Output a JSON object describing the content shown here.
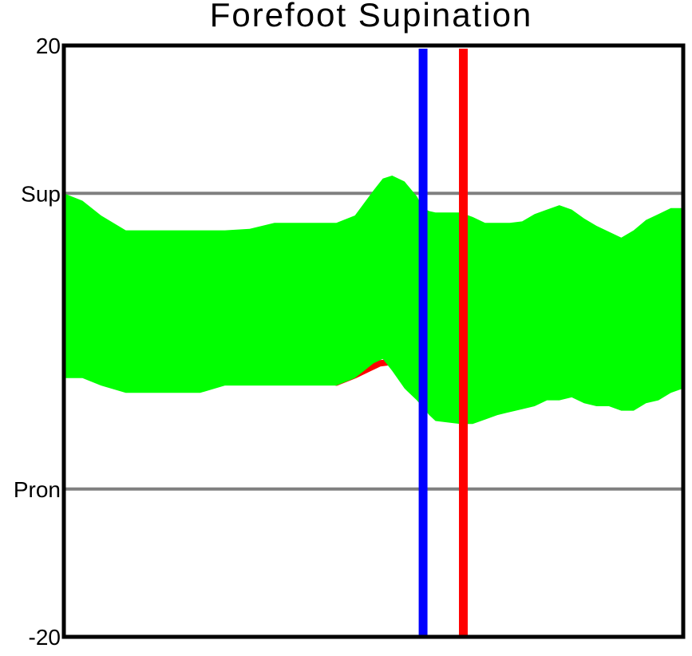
{
  "chart_data": {
    "type": "area",
    "title": "Forefoot Supination",
    "xlabel": "",
    "ylabel": "",
    "xlim": [
      0,
      100
    ],
    "ylim": [
      -20,
      20
    ],
    "grid": false,
    "y_ticks": [
      {
        "value": 20,
        "label": "20"
      },
      {
        "value": 10,
        "label": "Sup"
      },
      {
        "value": -10,
        "label": "Pron"
      },
      {
        "value": -20,
        "label": "-20"
      }
    ],
    "reference_lines": [
      {
        "label": "Sup",
        "y": 10,
        "color": "#808080"
      },
      {
        "label": "Pron",
        "y": -10,
        "color": "#808080"
      }
    ],
    "event_markers": [
      {
        "x": 58,
        "color": "#0000ff"
      },
      {
        "x": 64.5,
        "color": "#ff0000"
      }
    ],
    "series": [
      {
        "kind": "band",
        "color": "#00ff00",
        "x": [
          0,
          3,
          6,
          10,
          14,
          18,
          22,
          26,
          30,
          34,
          38,
          41,
          44,
          47,
          50,
          51.5,
          53,
          55,
          57,
          58,
          59,
          60,
          62,
          64,
          66,
          68,
          70,
          72,
          74,
          76,
          78,
          80,
          82,
          84,
          86,
          88,
          90,
          92,
          94,
          96,
          98,
          100
        ],
        "upper": [
          10.0,
          9.5,
          8.5,
          7.5,
          7.5,
          7.5,
          7.5,
          7.5,
          7.6,
          8.0,
          8.0,
          8.0,
          8.0,
          8.5,
          10.2,
          11.0,
          11.2,
          10.8,
          9.8,
          9.0,
          8.8,
          8.7,
          8.7,
          8.7,
          8.4,
          8.0,
          8.0,
          8.0,
          8.1,
          8.6,
          8.9,
          9.2,
          8.9,
          8.3,
          7.8,
          7.4,
          7.0,
          7.5,
          8.2,
          8.6,
          9.0,
          9.0
        ],
        "lower": [
          -2.5,
          -2.5,
          -3.0,
          -3.5,
          -3.5,
          -3.5,
          -3.5,
          -3.0,
          -3.0,
          -3.0,
          -3.0,
          -3.0,
          -3.0,
          -2.5,
          -1.5,
          -1.2,
          -2.0,
          -3.2,
          -4.0,
          -4.5,
          -5.0,
          -5.4,
          -5.5,
          -5.6,
          -5.6,
          -5.3,
          -5.0,
          -4.8,
          -4.6,
          -4.4,
          -4.0,
          -4.0,
          -3.8,
          -4.2,
          -4.4,
          -4.4,
          -4.7,
          -4.7,
          -4.2,
          -4.0,
          -3.5,
          -3.2
        ]
      },
      {
        "kind": "line",
        "color": "#ff0000",
        "x": [
          44,
          47,
          49,
          51,
          53
        ],
        "y": [
          -2.8,
          -2.3,
          -1.9,
          -1.5,
          -1.4
        ]
      }
    ]
  }
}
